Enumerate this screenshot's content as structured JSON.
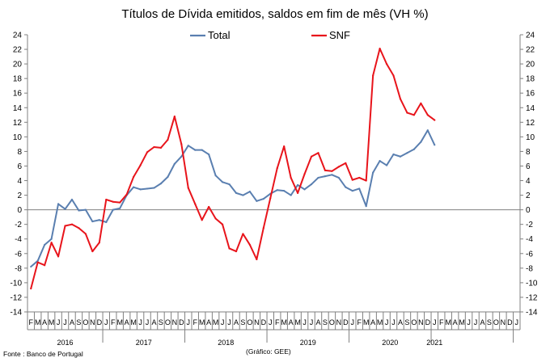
{
  "chart_data": {
    "type": "line",
    "title": "Títulos de Dívida emitidos, saldos em fim de mês  (VH %)",
    "ylim": [
      -14,
      24
    ],
    "yticks": [
      "-14",
      "-12",
      "-10",
      "-8",
      "-6",
      "-4",
      "-2",
      "0",
      "2",
      "4",
      "6",
      "8",
      "10",
      "12",
      "14",
      "16",
      "18",
      "20",
      "22",
      "24"
    ],
    "grid": false,
    "legend_position": "top",
    "month_labels": [
      "F",
      "M",
      "A",
      "M",
      "J",
      "J",
      "A",
      "S",
      "O",
      "N",
      "D",
      "J",
      "F",
      "M",
      "A",
      "M",
      "J",
      "J",
      "A",
      "S",
      "O",
      "N",
      "D",
      "J",
      "F",
      "M",
      "A",
      "M",
      "J",
      "J",
      "A",
      "S",
      "O",
      "N",
      "D",
      "J",
      "F",
      "M",
      "A",
      "M",
      "J",
      "J",
      "A",
      "S",
      "O",
      "N",
      "D",
      "J",
      "F",
      "M",
      "A",
      "M",
      "J",
      "J",
      "A",
      "S",
      "O",
      "N",
      "D",
      "J",
      "F",
      "M",
      "A",
      "M",
      "J",
      "J",
      "A",
      "S",
      "O",
      "N",
      "D",
      "J"
    ],
    "years": [
      "2016",
      "2017",
      "2018",
      "2019",
      "2020",
      "2021"
    ],
    "series": [
      {
        "name": "Total",
        "color": "#5a7fb0",
        "values": [
          -7.8,
          -7.0,
          -4.8,
          -4.0,
          0.8,
          0.1,
          1.4,
          -0.1,
          0.0,
          -1.6,
          -1.4,
          -1.7,
          0.0,
          0.2,
          2.0,
          3.1,
          2.8,
          2.9,
          3.0,
          3.6,
          4.5,
          6.3,
          7.3,
          8.8,
          8.2,
          8.2,
          7.6,
          4.7,
          3.8,
          3.5,
          2.3,
          2.0,
          2.5,
          1.2,
          1.5,
          2.2,
          2.7,
          2.6,
          2.0,
          3.4,
          2.8,
          3.5,
          4.4,
          4.6,
          4.8,
          4.4,
          3.1,
          2.6,
          2.9,
          0.5,
          5.1,
          6.7,
          6.1,
          7.6,
          7.3,
          7.8,
          8.3,
          9.3,
          10.9,
          8.9
        ]
      },
      {
        "name": "SNF",
        "color": "#e8141b",
        "values": [
          -10.8,
          -7.2,
          -7.6,
          -4.5,
          -6.4,
          -2.2,
          -2.0,
          -2.5,
          -3.3,
          -5.7,
          -4.5,
          1.4,
          1.1,
          1.0,
          2.1,
          4.5,
          6.1,
          7.9,
          8.6,
          8.5,
          9.6,
          12.8,
          9.0,
          3.0,
          0.8,
          -1.4,
          0.4,
          -1.2,
          -2.0,
          -5.3,
          -5.7,
          -3.3,
          -4.8,
          -6.8,
          -2.5,
          1.6,
          5.7,
          8.7,
          4.4,
          2.3,
          4.9,
          7.3,
          7.8,
          5.4,
          5.3,
          5.9,
          6.4,
          4.1,
          4.4,
          4.0,
          18.4,
          22.1,
          20.0,
          18.4,
          15.2,
          13.3,
          13.0,
          14.6,
          13.0,
          12.3
        ]
      }
    ]
  },
  "footer": {
    "source": "Fonte : Banco de Portugal",
    "credit": "(Gráfico: GEE)"
  }
}
